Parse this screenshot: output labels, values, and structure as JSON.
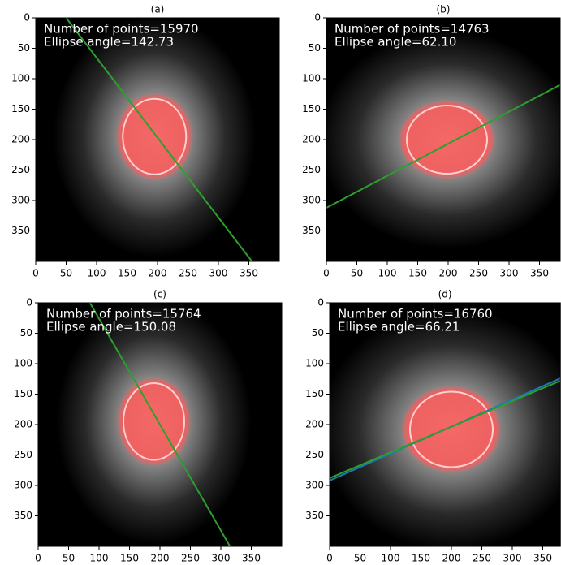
{
  "chart_data": [
    {
      "type": "image",
      "title": "(a)",
      "annotations": [
        "Number of points=15970",
        "Ellipse angle=142.73"
      ],
      "xlim": [
        0,
        400
      ],
      "ylim": [
        400,
        0
      ],
      "xticks": [
        0,
        50,
        100,
        150,
        200,
        250,
        300,
        350
      ],
      "yticks": [
        0,
        50,
        100,
        150,
        200,
        250,
        300,
        350
      ],
      "ellipse": {
        "cx": 195,
        "cy": 195,
        "rx": 52,
        "ry": 62,
        "color": "#ff5a5a"
      },
      "lines": [
        {
          "color": "#2ca02c",
          "x": [
            50,
            355
          ],
          "y": [
            0,
            400
          ]
        }
      ]
    },
    {
      "type": "image",
      "title": "(b)",
      "annotations": [
        "Number of points=14763",
        "Ellipse angle=62.10"
      ],
      "xlim": [
        0,
        384
      ],
      "ylim": [
        400,
        0
      ],
      "xticks": [
        0,
        50,
        100,
        150,
        200,
        250,
        300,
        350
      ],
      "yticks": [
        0,
        50,
        100,
        150,
        200,
        250,
        300,
        350
      ],
      "ellipse": {
        "cx": 198,
        "cy": 200,
        "rx": 66,
        "ry": 56,
        "color": "#ff5a5a"
      },
      "lines": [
        {
          "color": "#2ca02c",
          "x": [
            0,
            384
          ],
          "y": [
            312,
            110
          ]
        }
      ]
    },
    {
      "type": "image",
      "title": "(c)",
      "annotations": [
        "Number of points=15764",
        "Ellipse angle=150.08"
      ],
      "xlim": [
        0,
        400
      ],
      "ylim": [
        400,
        0
      ],
      "xticks": [
        0,
        50,
        100,
        150,
        200,
        250,
        300,
        350
      ],
      "yticks": [
        0,
        50,
        100,
        150,
        200,
        250,
        300,
        350
      ],
      "ellipse": {
        "cx": 190,
        "cy": 195,
        "rx": 50,
        "ry": 63,
        "color": "#ff5a5a"
      },
      "lines": [
        {
          "color": "#2ca02c",
          "x": [
            85,
            315
          ],
          "y": [
            0,
            400
          ]
        }
      ]
    },
    {
      "type": "image",
      "title": "(d)",
      "annotations": [
        "Number of points=16760",
        "Ellipse angle=66.21"
      ],
      "xlim": [
        0,
        379
      ],
      "ylim": [
        400,
        0
      ],
      "xticks": [
        0,
        50,
        100,
        150,
        200,
        250,
        300,
        350
      ],
      "yticks": [
        0,
        50,
        100,
        150,
        200,
        250,
        300,
        350
      ],
      "ellipse": {
        "cx": 200,
        "cy": 208,
        "rx": 68,
        "ry": 62,
        "color": "#ff5a5a"
      },
      "lines": [
        {
          "color": "#1f77b4",
          "x": [
            0,
            379
          ],
          "y": [
            292,
            124
          ]
        },
        {
          "color": "#2ca02c",
          "x": [
            0,
            379
          ],
          "y": [
            288,
            128
          ]
        }
      ]
    }
  ]
}
